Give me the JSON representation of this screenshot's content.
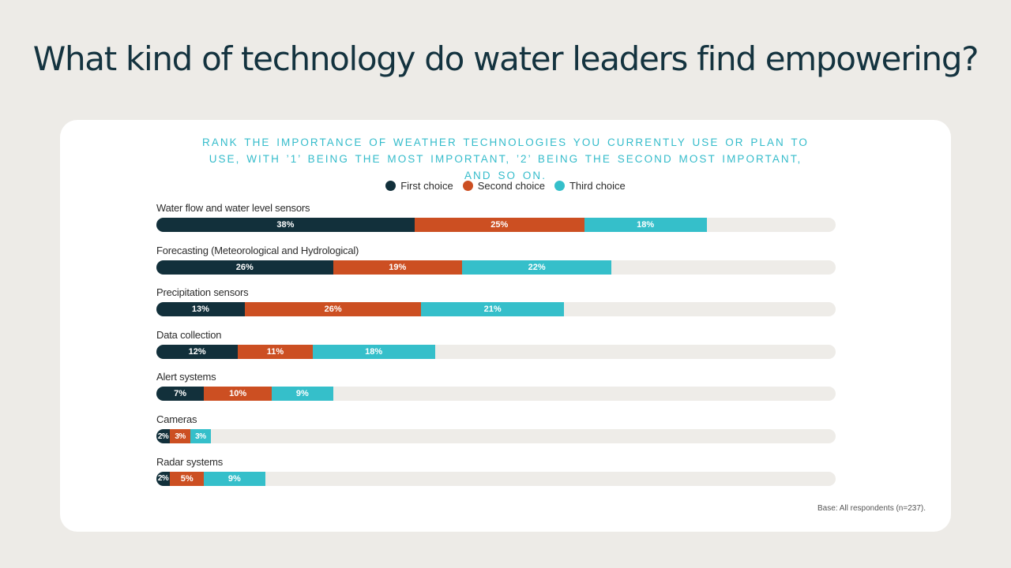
{
  "title": "What kind of technology do water leaders find empowering?",
  "colors": {
    "first": "#12303b",
    "second": "#cc4f22",
    "third": "#35bfca",
    "track": "#eeece8",
    "title": "#14333f",
    "subtitle": "#35bccb"
  },
  "chart_data": {
    "type": "bar",
    "orientation": "horizontal",
    "stacked": true,
    "title": "RANK THE IMPORTANCE OF WEATHER TECHNOLOGIES YOU CURRENTLY USE OR PLAN TO USE, WITH ’1’ BEING THE MOST IMPORTANT, ’2’ BEING THE SECOND MOST IMPORTANT, AND SO ON.",
    "categories": [
      "Water flow and water level sensors",
      "Forecasting (Meteorological and Hydrological)",
      "Precipitation sensors",
      "Data collection",
      "Alert systems",
      "Cameras",
      "Radar systems"
    ],
    "series": [
      {
        "name": "First choice",
        "values": [
          38,
          26,
          13,
          12,
          7,
          2,
          2
        ]
      },
      {
        "name": "Second choice",
        "values": [
          25,
          19,
          26,
          11,
          10,
          3,
          5
        ]
      },
      {
        "name": "Third choice",
        "values": [
          18,
          22,
          21,
          18,
          9,
          3,
          9
        ]
      }
    ],
    "value_suffix": "%",
    "xlim": [
      0,
      100
    ],
    "legend_position": "top-center",
    "note": "Base: All respondents (n=237)."
  }
}
